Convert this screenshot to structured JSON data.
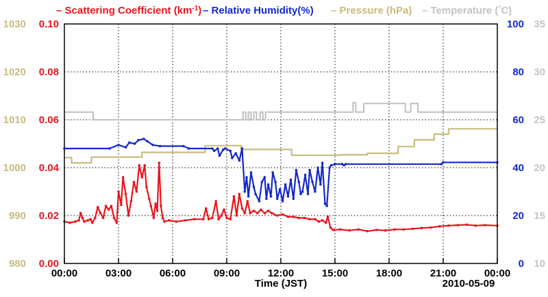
{
  "chart_data": {
    "type": "line",
    "legend": [
      {
        "label": "Scattering Coefficient (km",
        "sup": "-1",
        "tail": ")",
        "color": "#e8141c"
      },
      {
        "label": "Relative Humidity(%)",
        "color": "#1528c8"
      },
      {
        "label": "Pressure (hPa)",
        "color": "#c8bc7e"
      },
      {
        "label": "Temperature (",
        "sup": "°",
        "tail": "C)",
        "color": "#c4c4c4"
      }
    ],
    "xlabel": "Time (JST)",
    "date": "2010-05-09",
    "x_ticks": [
      "00:00",
      "03:00",
      "06:00",
      "09:00",
      "12:00",
      "15:00",
      "18:00",
      "21:00",
      "00:00"
    ],
    "xlim_hours": [
      0,
      24
    ],
    "axes": {
      "scattering": {
        "ylim": [
          0.0,
          0.1
        ],
        "ticks": [
          "0.00",
          "0.02",
          "0.04",
          "0.06",
          "0.08",
          "0.10"
        ],
        "color": "#e8141c"
      },
      "pressure": {
        "ylim": [
          980,
          1030
        ],
        "ticks": [
          "980",
          "990",
          "1000",
          "1010",
          "1020",
          "1030"
        ],
        "color": "#c8bc7e"
      },
      "humidity": {
        "ylim": [
          0,
          100
        ],
        "ticks": [
          "0",
          "20",
          "40",
          "60",
          "80",
          "100"
        ],
        "color": "#1528c8"
      },
      "temperature": {
        "ylim": [
          10,
          35
        ],
        "ticks": [
          "10",
          "15",
          "20",
          "25",
          "30",
          "35"
        ],
        "color": "#c4c4c4"
      }
    },
    "series": [
      {
        "name": "Temperature",
        "axis": "temperature",
        "color": "#c4c4c4",
        "style": "step",
        "points": [
          [
            0,
            25.8
          ],
          [
            1.5,
            25.8
          ],
          [
            1.6,
            25.0
          ],
          [
            9.8,
            25.0
          ],
          [
            9.9,
            25.8
          ],
          [
            10.05,
            25.0
          ],
          [
            10.2,
            25.8
          ],
          [
            10.35,
            25.0
          ],
          [
            10.5,
            25.8
          ],
          [
            10.65,
            25.0
          ],
          [
            10.85,
            25.8
          ],
          [
            11.0,
            25.0
          ],
          [
            11.15,
            25.8
          ],
          [
            15.9,
            25.8
          ],
          [
            16.0,
            26.8
          ],
          [
            16.15,
            25.8
          ],
          [
            16.5,
            25.8
          ],
          [
            16.6,
            26.7
          ],
          [
            18.8,
            26.7
          ],
          [
            18.9,
            25.8
          ],
          [
            19.1,
            25.8
          ],
          [
            19.2,
            26.7
          ],
          [
            19.5,
            26.7
          ],
          [
            19.6,
            25.8
          ],
          [
            24,
            25.8
          ]
        ]
      },
      {
        "name": "Pressure",
        "axis": "pressure",
        "color": "#c8bc7e",
        "style": "step",
        "points": [
          [
            0,
            1002.1
          ],
          [
            0.4,
            1001.0
          ],
          [
            1.5,
            1002.2
          ],
          [
            4.3,
            1003.2
          ],
          [
            7.8,
            1004.6
          ],
          [
            9.8,
            1003.8
          ],
          [
            12.6,
            1002.6
          ],
          [
            15.3,
            1002.7
          ],
          [
            16.2,
            1002.7
          ],
          [
            16.8,
            1003.0
          ],
          [
            17.8,
            1003.0
          ],
          [
            18.5,
            1004.4
          ],
          [
            19.4,
            1005.8
          ],
          [
            20.5,
            1007.0
          ],
          [
            21.3,
            1008.1
          ],
          [
            24,
            1008.1
          ]
        ]
      },
      {
        "name": "Relative Humidity",
        "axis": "humidity",
        "color": "#1528c8",
        "style": "line",
        "points": [
          [
            0,
            48
          ],
          [
            2.5,
            48
          ],
          [
            3.0,
            49.5
          ],
          [
            3.4,
            48.5
          ],
          [
            3.6,
            50.5
          ],
          [
            3.9,
            50
          ],
          [
            4.1,
            51.5
          ],
          [
            4.4,
            52
          ],
          [
            4.6,
            51
          ],
          [
            4.9,
            49.5
          ],
          [
            5.3,
            49
          ],
          [
            6.6,
            49
          ],
          [
            6.9,
            48
          ],
          [
            8.2,
            48
          ],
          [
            8.3,
            47
          ],
          [
            8.5,
            48
          ],
          [
            8.6,
            45
          ],
          [
            8.8,
            47.5
          ],
          [
            8.9,
            48
          ],
          [
            9.2,
            47
          ],
          [
            9.3,
            44
          ],
          [
            9.5,
            46
          ],
          [
            9.7,
            43
          ],
          [
            9.85,
            48
          ],
          [
            10.0,
            30
          ],
          [
            10.1,
            36
          ],
          [
            10.2,
            28
          ],
          [
            10.35,
            38
          ],
          [
            10.5,
            32
          ],
          [
            10.6,
            29
          ],
          [
            10.8,
            26
          ],
          [
            10.95,
            34
          ],
          [
            11.1,
            36
          ],
          [
            11.2,
            27
          ],
          [
            11.3,
            33
          ],
          [
            11.45,
            28
          ],
          [
            11.55,
            38
          ],
          [
            11.7,
            34
          ],
          [
            11.8,
            27
          ],
          [
            11.95,
            31
          ],
          [
            12.1,
            26
          ],
          [
            12.25,
            33
          ],
          [
            12.4,
            28
          ],
          [
            12.55,
            35
          ],
          [
            12.7,
            27
          ],
          [
            12.85,
            39
          ],
          [
            13.0,
            34
          ],
          [
            13.1,
            29
          ],
          [
            13.2,
            30
          ],
          [
            13.35,
            37
          ],
          [
            13.5,
            29
          ],
          [
            13.6,
            39
          ],
          [
            13.75,
            34
          ],
          [
            13.9,
            30
          ],
          [
            14.05,
            40
          ],
          [
            14.2,
            33
          ],
          [
            14.3,
            42
          ],
          [
            14.45,
            25
          ],
          [
            14.55,
            24
          ],
          [
            14.7,
            40
          ],
          [
            14.8,
            41
          ],
          [
            15.0,
            41.5
          ],
          [
            15.4,
            41.5
          ],
          [
            15.5,
            41
          ],
          [
            15.6,
            41.5
          ],
          [
            20.9,
            41.5
          ],
          [
            21.0,
            42.2
          ],
          [
            24,
            42.2
          ]
        ]
      },
      {
        "name": "Scattering Coefficient",
        "axis": "scattering",
        "color": "#e8141c",
        "style": "line",
        "points": [
          [
            0,
            0.0175
          ],
          [
            0.3,
            0.017
          ],
          [
            0.6,
            0.0175
          ],
          [
            0.8,
            0.018
          ],
          [
            0.9,
            0.021
          ],
          [
            1.0,
            0.019
          ],
          [
            1.1,
            0.0175
          ],
          [
            1.3,
            0.018
          ],
          [
            1.45,
            0.0185
          ],
          [
            1.55,
            0.017
          ],
          [
            1.7,
            0.019
          ],
          [
            1.85,
            0.0235
          ],
          [
            2.0,
            0.021
          ],
          [
            2.15,
            0.019
          ],
          [
            2.3,
            0.024
          ],
          [
            2.45,
            0.0225
          ],
          [
            2.6,
            0.024
          ],
          [
            2.75,
            0.019
          ],
          [
            2.9,
            0.017
          ],
          [
            3.0,
            0.03
          ],
          [
            3.15,
            0.0245
          ],
          [
            3.25,
            0.036
          ],
          [
            3.4,
            0.029
          ],
          [
            3.55,
            0.02
          ],
          [
            3.7,
            0.026
          ],
          [
            3.85,
            0.034
          ],
          [
            4.0,
            0.03
          ],
          [
            4.15,
            0.041
          ],
          [
            4.3,
            0.036
          ],
          [
            4.45,
            0.041
          ],
          [
            4.55,
            0.032
          ],
          [
            4.7,
            0.027
          ],
          [
            4.8,
            0.024
          ],
          [
            4.95,
            0.019
          ],
          [
            5.05,
            0.025
          ],
          [
            5.15,
            0.022
          ],
          [
            5.25,
            0.042
          ],
          [
            5.35,
            0.024
          ],
          [
            5.45,
            0.019
          ],
          [
            5.55,
            0.0175
          ],
          [
            5.8,
            0.018
          ],
          [
            6.2,
            0.0175
          ],
          [
            6.7,
            0.018
          ],
          [
            7.2,
            0.0185
          ],
          [
            7.7,
            0.0185
          ],
          [
            7.85,
            0.023
          ],
          [
            8.0,
            0.0185
          ],
          [
            8.2,
            0.019
          ],
          [
            8.4,
            0.026
          ],
          [
            8.55,
            0.0185
          ],
          [
            8.7,
            0.02
          ],
          [
            8.85,
            0.0225
          ],
          [
            9.0,
            0.019
          ],
          [
            9.2,
            0.0185
          ],
          [
            9.4,
            0.028
          ],
          [
            9.55,
            0.02
          ],
          [
            9.7,
            0.029
          ],
          [
            9.85,
            0.023
          ],
          [
            10.0,
            0.021
          ],
          [
            10.15,
            0.026
          ],
          [
            10.3,
            0.021
          ],
          [
            10.5,
            0.022
          ],
          [
            10.7,
            0.021
          ],
          [
            10.9,
            0.0225
          ],
          [
            11.1,
            0.021
          ],
          [
            11.3,
            0.022
          ],
          [
            11.5,
            0.021
          ],
          [
            11.8,
            0.02
          ],
          [
            12.1,
            0.0205
          ],
          [
            12.4,
            0.0195
          ],
          [
            12.7,
            0.0195
          ],
          [
            13.0,
            0.019
          ],
          [
            13.3,
            0.019
          ],
          [
            13.6,
            0.0185
          ],
          [
            13.9,
            0.0185
          ],
          [
            14.1,
            0.0175
          ],
          [
            14.3,
            0.018
          ],
          [
            14.5,
            0.017
          ],
          [
            14.6,
            0.0195
          ],
          [
            14.75,
            0.015
          ],
          [
            14.9,
            0.014
          ],
          [
            15.3,
            0.0142
          ],
          [
            15.8,
            0.0138
          ],
          [
            16.3,
            0.0142
          ],
          [
            16.8,
            0.0135
          ],
          [
            17.3,
            0.014
          ],
          [
            17.8,
            0.0138
          ],
          [
            18.3,
            0.0142
          ],
          [
            18.8,
            0.0142
          ],
          [
            19.3,
            0.0145
          ],
          [
            19.8,
            0.0148
          ],
          [
            20.3,
            0.015
          ],
          [
            20.8,
            0.0155
          ],
          [
            21.3,
            0.0158
          ],
          [
            21.8,
            0.016
          ],
          [
            22.3,
            0.0162
          ],
          [
            22.8,
            0.0158
          ],
          [
            23.3,
            0.016
          ],
          [
            24,
            0.0158
          ]
        ]
      }
    ]
  }
}
